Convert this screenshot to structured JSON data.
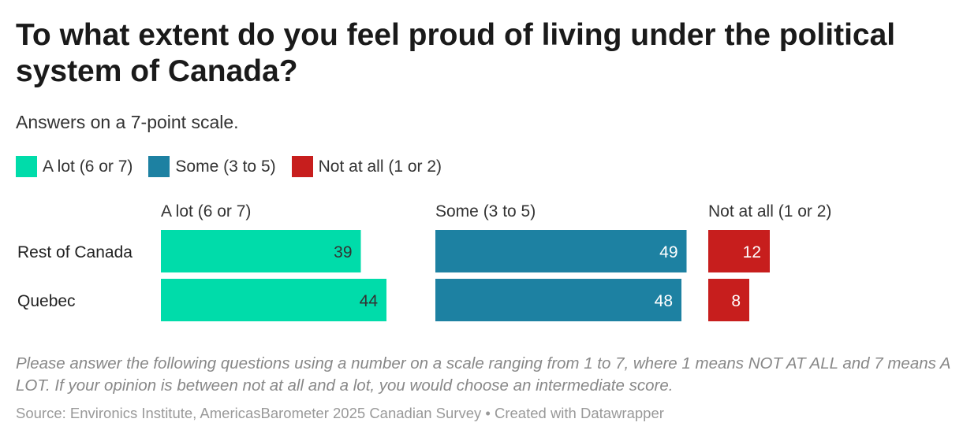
{
  "chart_data": {
    "type": "bar",
    "title": "To what extent do you feel proud of living under the political system of Canada?",
    "subtitle": "Answers on a 7-point scale.",
    "categories": [
      "Rest of Canada",
      "Quebec"
    ],
    "series": [
      {
        "name": "A lot (6 or 7)",
        "color": "#00dcaa",
        "label_color": "#333333",
        "values": [
          39,
          44
        ]
      },
      {
        "name": "Some (3 to 5)",
        "color": "#1d81a2",
        "label_color": "#ffffff",
        "values": [
          49,
          48
        ]
      },
      {
        "name": "Not at all (1 or 2)",
        "color": "#c71e1d",
        "label_color": "#ffffff",
        "values": [
          12,
          8
        ]
      }
    ],
    "xlim": [
      0,
      100
    ],
    "layout_style": "small-multiples",
    "note": "Please answer the following questions using a number on a scale ranging from 1 to 7, where 1 means NOT AT ALL and 7 means A LOT. If your opinion is between not at all and a lot, you would choose an intermediate score.",
    "source": "Source: Environics Institute, AmericasBarometer 2025 Canadian Survey • Created with Datawrapper"
  }
}
